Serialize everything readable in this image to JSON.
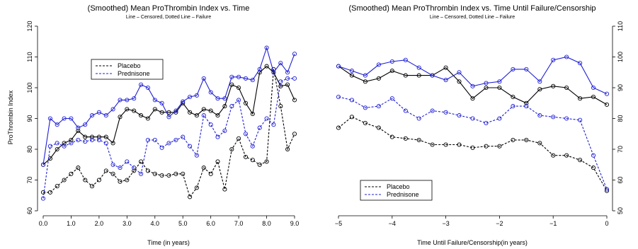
{
  "colors": {
    "placebo": "#000000",
    "prednisone": "#1f1fd6"
  },
  "chart_data": [
    {
      "type": "line",
      "title": "(Smoothed) Mean ProThrombin Index vs. Time",
      "subtitle": "Line – Censored, Dotted Line – Failure",
      "xlabel": "Time (in years)",
      "ylabel": "ProThrombin Index",
      "xlim": [
        0,
        9
      ],
      "ylim": [
        60,
        120
      ],
      "xticks": [
        "0.0",
        "1.0",
        "2.0",
        "3.0",
        "4.0",
        "5.0",
        "6.0",
        "7.0",
        "8.0",
        "9.0"
      ],
      "yticks": [
        "60",
        "70",
        "80",
        "90",
        "100",
        "110",
        "120"
      ],
      "y_axis_side": "left",
      "legend": {
        "placement": "top-left",
        "entries": [
          "Placebo",
          "Prednisone"
        ]
      },
      "x": [
        0.0,
        0.25,
        0.5,
        0.75,
        1.0,
        1.25,
        1.5,
        1.75,
        2.0,
        2.25,
        2.5,
        2.75,
        3.0,
        3.25,
        3.5,
        3.75,
        4.0,
        4.25,
        4.5,
        4.75,
        5.0,
        5.25,
        5.5,
        5.75,
        6.0,
        6.25,
        6.5,
        6.75,
        7.0,
        7.25,
        7.5,
        7.75,
        8.0,
        8.25,
        8.5,
        8.75,
        9.0
      ],
      "series": [
        {
          "name": "Placebo",
          "group": "Placebo",
          "style": "solid",
          "values": [
            75,
            77,
            80,
            82,
            83,
            86,
            84,
            84,
            84,
            84,
            82,
            90.5,
            93,
            92.5,
            91,
            90,
            93,
            92,
            92,
            92,
            95,
            92,
            91,
            93,
            92.5,
            91,
            94,
            101,
            100,
            95,
            91.5,
            105,
            107,
            105,
            100.5,
            101,
            96
          ]
        },
        {
          "name": "Placebo",
          "group": "Placebo",
          "style": "dotted",
          "values": [
            66,
            66,
            68,
            70,
            72,
            74,
            70,
            68,
            70,
            73,
            72,
            69.5,
            70,
            73,
            76,
            73,
            72,
            71.5,
            71.5,
            72,
            72,
            64.5,
            67.5,
            74,
            72,
            76,
            67,
            80,
            83.5,
            77.5,
            76.5,
            75,
            76,
            106,
            94,
            80,
            85
          ]
        },
        {
          "name": "Prednisone",
          "group": "Prednisone",
          "style": "solid",
          "values": [
            75,
            90,
            88,
            90,
            90,
            87,
            88,
            91,
            92,
            91,
            93,
            96,
            96,
            96.5,
            101,
            100,
            96,
            95,
            90.5,
            92.5,
            95.5,
            97,
            97.5,
            103,
            98.5,
            96.5,
            96.5,
            103.5,
            103.5,
            103,
            102.5,
            106,
            113,
            105,
            108,
            105,
            111
          ]
        },
        {
          "name": "Prednisone",
          "group": "Prednisone",
          "style": "dotted",
          "values": [
            64,
            81,
            82,
            81,
            82,
            83,
            82.5,
            83,
            83,
            82,
            75,
            74,
            76,
            74,
            72,
            83,
            83,
            80.5,
            82,
            83,
            84,
            81,
            78,
            91,
            88,
            84,
            86,
            94,
            96,
            85,
            81,
            87,
            90,
            88,
            102,
            103,
            103
          ]
        }
      ]
    },
    {
      "type": "line",
      "title": "(Smoothed) Mean ProThrombin Index vs. Time Until Failure/Censorship",
      "subtitle": "Line – Censored, Dotted Line – Failure",
      "xlabel": "Time Until Failure/Censorship(in years)",
      "ylabel": "",
      "xlim": [
        -5,
        0
      ],
      "ylim": [
        50,
        110
      ],
      "xticks": [
        "−5",
        "−4",
        "−3",
        "−2",
        "−1",
        "0"
      ],
      "yticks": [
        "50",
        "60",
        "70",
        "80",
        "90",
        "100",
        "110"
      ],
      "y_axis_side": "right",
      "legend": {
        "placement": "bottom-left",
        "entries": [
          "Placebo",
          "Prednisone"
        ]
      },
      "x": [
        -5.0,
        -4.75,
        -4.5,
        -4.25,
        -4.0,
        -3.75,
        -3.5,
        -3.25,
        -3.0,
        -2.75,
        -2.5,
        -2.25,
        -2.0,
        -1.75,
        -1.5,
        -1.25,
        -1.0,
        -0.75,
        -0.5,
        -0.25,
        0.0
      ],
      "series": [
        {
          "name": "Placebo",
          "group": "Placebo",
          "style": "solid",
          "values": [
            97,
            94,
            92,
            93,
            95.5,
            94,
            94,
            94,
            96.5,
            92,
            86.5,
            90,
            90,
            87,
            85,
            89.5,
            90.5,
            90,
            86.5,
            87,
            84.5
          ]
        },
        {
          "name": "Placebo",
          "group": "Placebo",
          "style": "dotted",
          "values": [
            77,
            80.5,
            78.5,
            77,
            74,
            73.5,
            73,
            71.5,
            71.5,
            71.5,
            70.5,
            71,
            71,
            73,
            73,
            72,
            68,
            68,
            66.5,
            64,
            56.5
          ]
        },
        {
          "name": "Prednisone",
          "group": "Prednisone",
          "style": "solid",
          "values": [
            97,
            95.5,
            94,
            97.5,
            98.5,
            99,
            96.5,
            94,
            92.5,
            95,
            90.5,
            91.5,
            92,
            96,
            96,
            92,
            99,
            100,
            98,
            90,
            88
          ]
        },
        {
          "name": "Prednisone",
          "group": "Prednisone",
          "style": "dotted",
          "values": [
            87,
            86,
            83.5,
            84,
            86.5,
            82.5,
            80,
            82.5,
            82,
            81,
            80,
            78.5,
            80,
            84,
            84,
            81,
            80.5,
            80,
            79.5,
            68,
            57
          ]
        }
      ]
    }
  ]
}
